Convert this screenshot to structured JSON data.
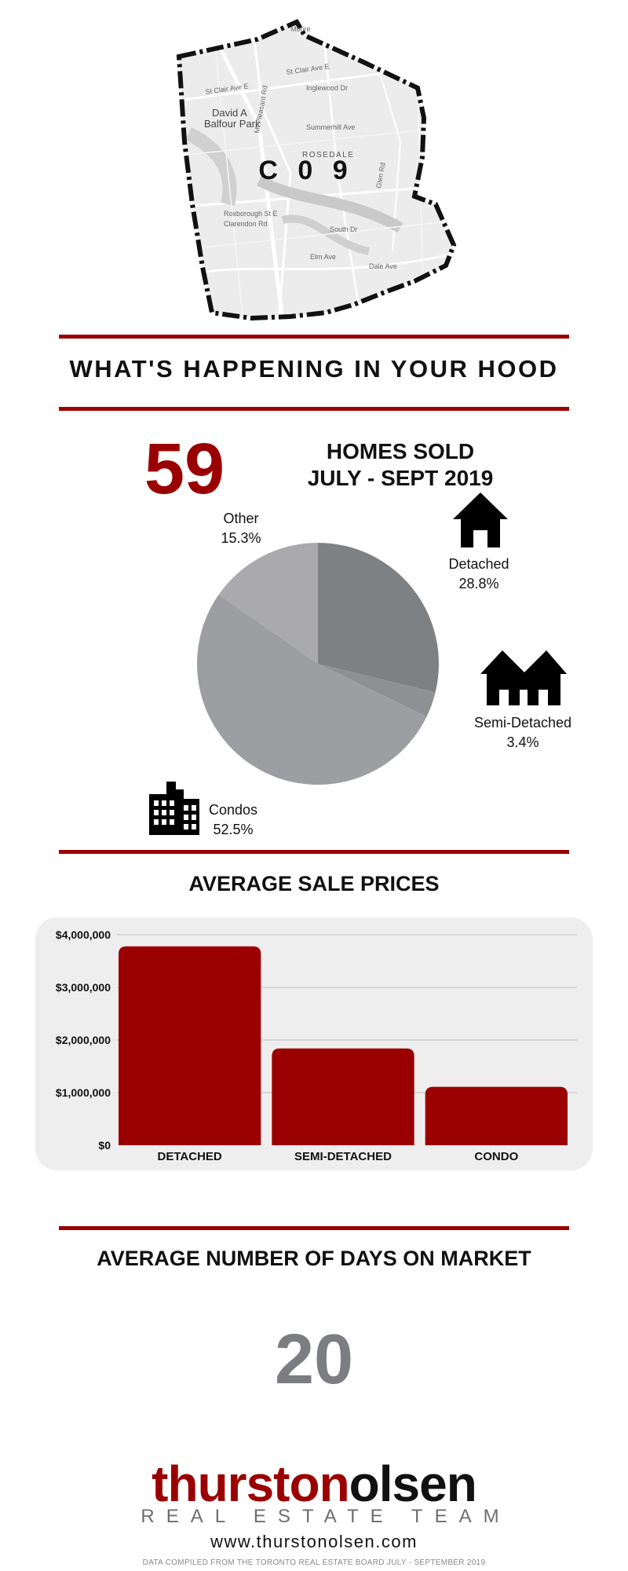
{
  "map": {
    "code": "C 0 9",
    "area_label": "David A\nBalfour Park",
    "street_labels": [
      "St Clair Ave E",
      "Moore",
      "Inglewood Dr",
      "Summerhill Ave",
      "ROSEDALE",
      "Roxborough St E",
      "South Dr",
      "Elm Ave",
      "Dale Ave",
      "Glen Rd",
      "Mt Pleasant Rd",
      "Clarendon Rd"
    ]
  },
  "header": {
    "title": "WHAT'S HAPPENING IN YOUR HOOD"
  },
  "homes_sold": {
    "count": "59",
    "label_line1": "HOMES SOLD",
    "label_line2": "JULY - SEPT 2019"
  },
  "pie_labels": {
    "detached": {
      "name": "Detached",
      "pct": "28.8%"
    },
    "semi": {
      "name": "Semi-Detached",
      "pct": "3.4%"
    },
    "condos": {
      "name": "Condos",
      "pct": "52.5%"
    },
    "other": {
      "name": "Other",
      "pct": "15.3%"
    }
  },
  "prices_section": {
    "title": "AVERAGE SALE PRICES"
  },
  "days_section": {
    "title": "AVERAGE NUMBER OF DAYS ON MARKET",
    "value": "20"
  },
  "footer": {
    "logo_part1": "thurston",
    "logo_part2": "olsen",
    "logo_sub": "REAL ESTATE TEAM",
    "website": "www.thurstonolsen.com",
    "note": "DATA COMPILED FROM THE TORONTO REAL ESTATE BOARD JULY - SEPTEMBER 2019"
  },
  "colors": {
    "accent": "#9b0000",
    "pie_detached": "#7e8184",
    "pie_semi": "#8e9093",
    "pie_condos": "#9d9ea1",
    "pie_other": "#aaaaac",
    "days": "#7b7d80"
  },
  "icons": [
    "house-icon",
    "semi-detached-icon",
    "condo-building-icon"
  ],
  "chart_data": [
    {
      "type": "pie",
      "title": "HOMES SOLD JULY - SEPT 2019",
      "categories": [
        "Detached",
        "Semi-Detached",
        "Condos",
        "Other"
      ],
      "values": [
        28.8,
        3.4,
        52.5,
        15.3
      ]
    },
    {
      "type": "bar",
      "title": "AVERAGE SALE PRICES",
      "categories": [
        "DETACHED",
        "SEMI-DETACHED",
        "CONDO"
      ],
      "values": [
        3780000,
        1840000,
        1110000
      ],
      "ylim": [
        0,
        4000000
      ],
      "yticks": [
        "$0",
        "$1,000,000",
        "$2,000,000",
        "$3,000,000",
        "$4,000,000"
      ],
      "grid": true
    }
  ]
}
